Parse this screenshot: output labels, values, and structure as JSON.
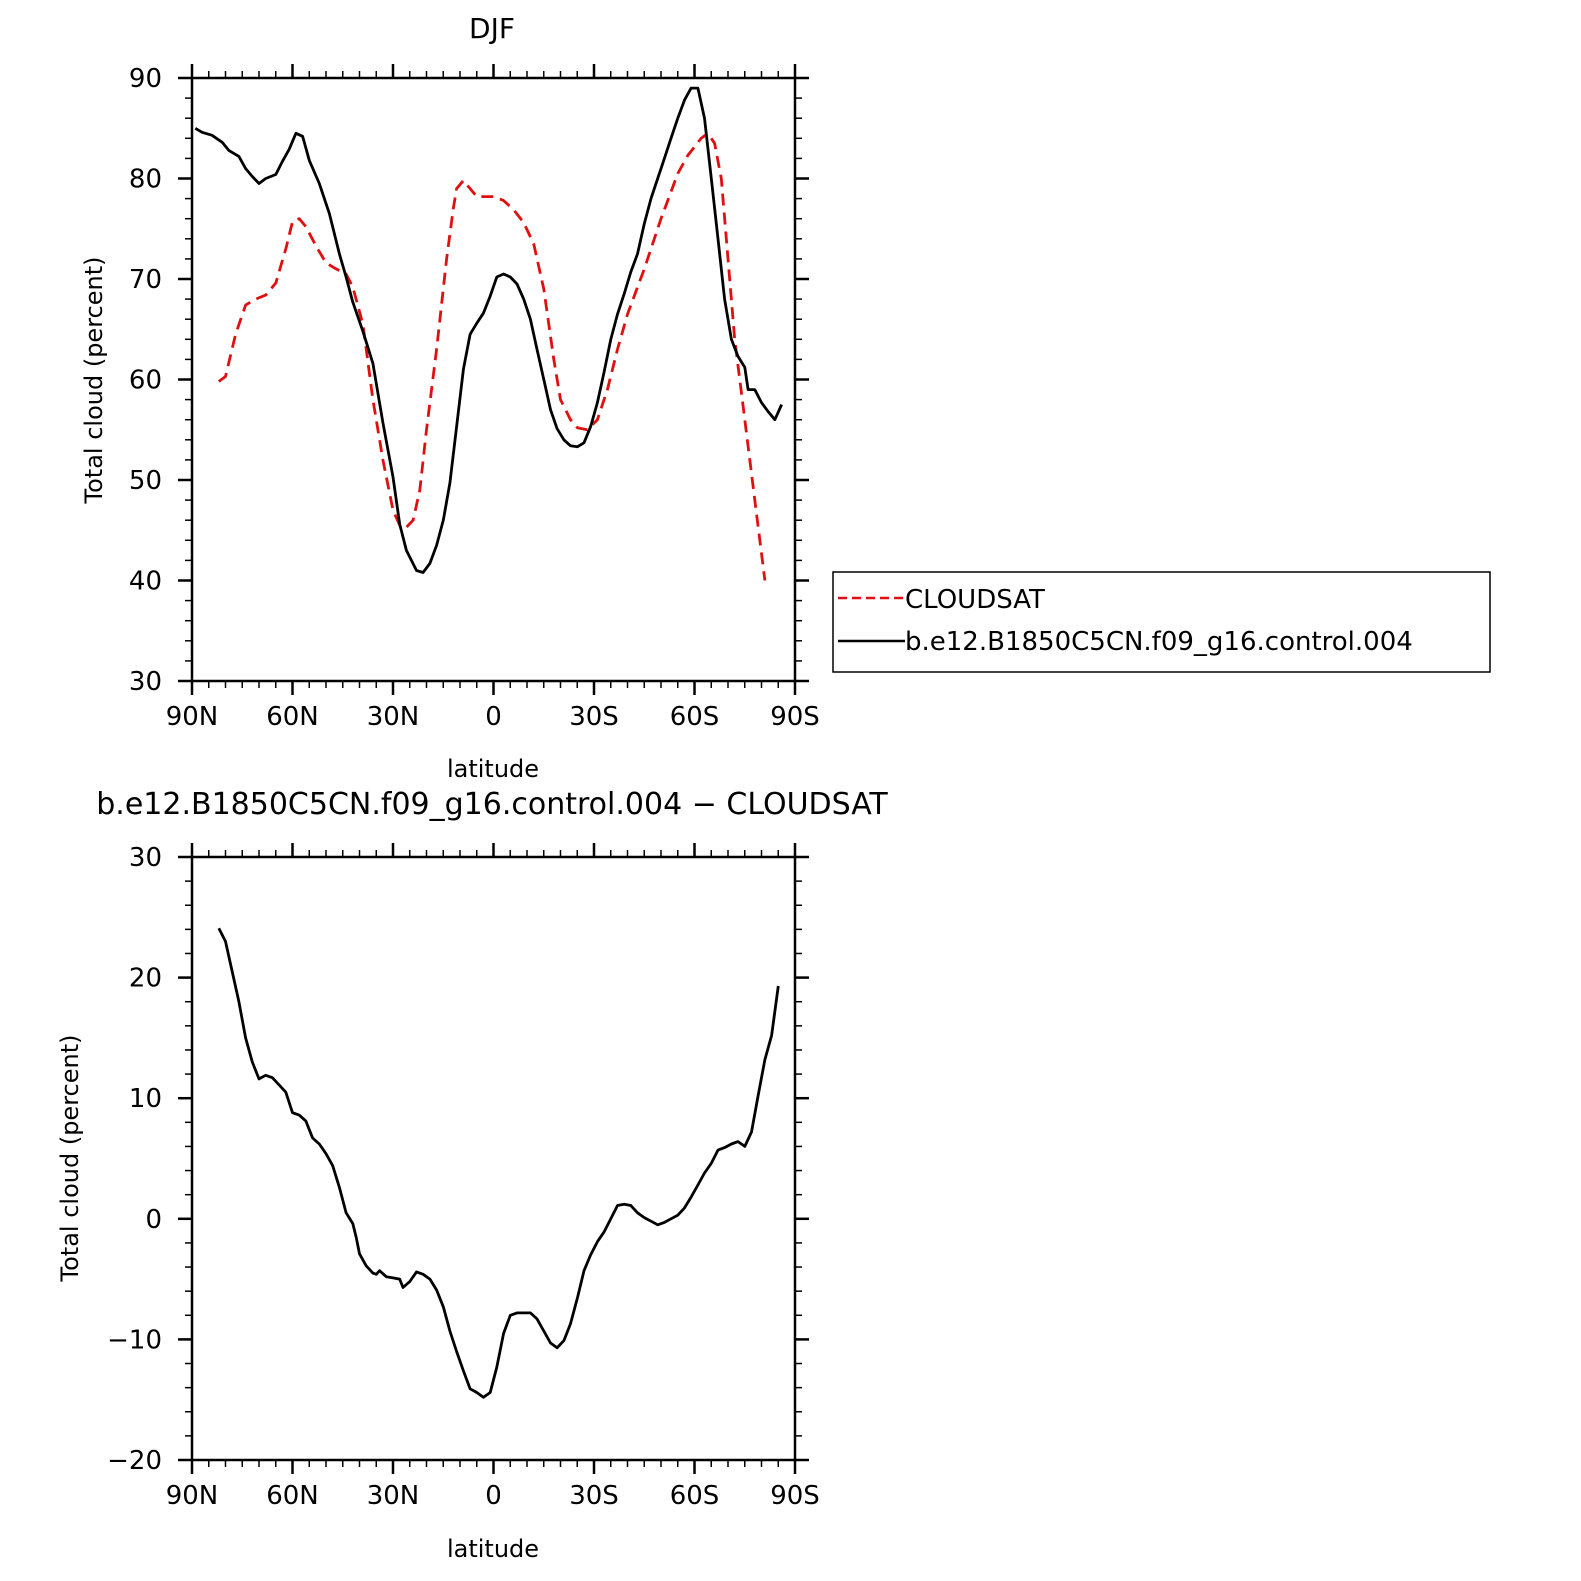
{
  "chart_data": [
    {
      "type": "line",
      "title": "DJF",
      "xlabel": "latitude",
      "ylabel": "Total cloud (percent)",
      "xlim": [
        90,
        -90
      ],
      "ylim": [
        30,
        90
      ],
      "xticks": [
        90,
        60,
        30,
        0,
        -30,
        -60,
        -90
      ],
      "xtick_labels": [
        "90N",
        "60N",
        "30N",
        "0",
        "30S",
        "60S",
        "90S"
      ],
      "yticks": [
        30,
        40,
        50,
        60,
        70,
        80,
        90
      ],
      "ytick_labels": [
        "30",
        "40",
        "50",
        "60",
        "70",
        "80",
        "90"
      ],
      "legend_position": "right",
      "series": [
        {
          "name": "CLOUDSAT",
          "color": "#e01010",
          "dash": true,
          "points": [
            [
              82,
              59.8
            ],
            [
              80,
              60.3
            ],
            [
              77,
              64.5
            ],
            [
              74,
              67.4
            ],
            [
              71,
              68
            ],
            [
              68,
              68.4
            ],
            [
              65,
              69.6
            ],
            [
              62,
              73
            ],
            [
              60,
              75.7
            ],
            [
              58,
              76
            ],
            [
              56,
              75.2
            ],
            [
              53,
              73.3
            ],
            [
              50,
              71.6
            ],
            [
              47,
              71
            ],
            [
              44,
              70.5
            ],
            [
              42,
              69.2
            ],
            [
              39,
              65.5
            ],
            [
              36,
              58
            ],
            [
              33,
              52
            ],
            [
              30,
              47
            ],
            [
              28,
              45.5
            ],
            [
              26,
              45.3
            ],
            [
              24,
              46
            ],
            [
              22,
              49
            ],
            [
              20,
              55
            ],
            [
              17,
              63
            ],
            [
              14,
              72
            ],
            [
              12,
              77
            ],
            [
              11,
              79
            ],
            [
              9,
              79.8
            ],
            [
              7,
              79
            ],
            [
              5,
              78.2
            ],
            [
              3,
              78.2
            ],
            [
              0,
              78.2
            ],
            [
              -3,
              77.8
            ],
            [
              -6,
              76.9
            ],
            [
              -9,
              75.6
            ],
            [
              -12,
              73.5
            ],
            [
              -15,
              69
            ],
            [
              -18,
              62
            ],
            [
              -20,
              58
            ],
            [
              -23,
              56
            ],
            [
              -25,
              55.2
            ],
            [
              -28,
              55
            ],
            [
              -31,
              56
            ],
            [
              -34,
              59
            ],
            [
              -37,
              63
            ],
            [
              -40,
              66.5
            ],
            [
              -45,
              71
            ],
            [
              -50,
              76
            ],
            [
              -55,
              80.5
            ],
            [
              -58,
              82.3
            ],
            [
              -62,
              84
            ],
            [
              -64,
              84.5
            ],
            [
              -66,
              83.5
            ],
            [
              -68,
              80
            ],
            [
              -70,
              72
            ],
            [
              -72,
              64
            ],
            [
              -75,
              56
            ],
            [
              -78,
              48
            ],
            [
              -81,
              40
            ]
          ]
        },
        {
          "name": "b.e12.B1850C5CN.f09_g16.control.004",
          "color": "#000000",
          "dash": false,
          "points": [
            [
              89,
              85
            ],
            [
              87,
              84.6
            ],
            [
              84,
              84.3
            ],
            [
              81,
              83.6
            ],
            [
              79,
              82.8
            ],
            [
              76,
              82.2
            ],
            [
              74,
              81
            ],
            [
              72,
              80.2
            ],
            [
              70,
              79.5
            ],
            [
              68,
              80
            ],
            [
              65,
              80.4
            ],
            [
              63,
              81.7
            ],
            [
              61,
              82.9
            ],
            [
              59,
              84.5
            ],
            [
              57,
              84.2
            ],
            [
              55,
              81.8
            ],
            [
              52,
              79.5
            ],
            [
              49,
              76.5
            ],
            [
              46,
              72.5
            ],
            [
              44,
              70.2
            ],
            [
              42,
              67.7
            ],
            [
              39,
              64.8
            ],
            [
              36,
              61.6
            ],
            [
              33,
              55.7
            ],
            [
              30,
              50.3
            ],
            [
              28,
              45.6
            ],
            [
              26,
              43
            ],
            [
              23,
              41
            ],
            [
              21,
              40.8
            ],
            [
              19,
              41.7
            ],
            [
              17,
              43.5
            ],
            [
              15,
              46
            ],
            [
              13,
              49.7
            ],
            [
              11,
              55.3
            ],
            [
              9,
              61
            ],
            [
              7,
              64.5
            ],
            [
              5,
              65.6
            ],
            [
              3,
              66.6
            ],
            [
              1,
              68.3
            ],
            [
              -1,
              70.2
            ],
            [
              -3,
              70.5
            ],
            [
              -5,
              70.2
            ],
            [
              -7,
              69.5
            ],
            [
              -9,
              68
            ],
            [
              -11,
              66
            ],
            [
              -13,
              63
            ],
            [
              -15,
              60
            ],
            [
              -17,
              57
            ],
            [
              -19,
              55.1
            ],
            [
              -21,
              54
            ],
            [
              -23,
              53.4
            ],
            [
              -25,
              53.3
            ],
            [
              -27,
              53.7
            ],
            [
              -29,
              55.3
            ],
            [
              -31,
              57.7
            ],
            [
              -33,
              60.7
            ],
            [
              -35,
              64
            ],
            [
              -37,
              66.5
            ],
            [
              -39,
              68.5
            ],
            [
              -41,
              70.7
            ],
            [
              -43,
              72.5
            ],
            [
              -45,
              75.5
            ],
            [
              -47,
              78
            ],
            [
              -49,
              80
            ],
            [
              -51,
              82
            ],
            [
              -53,
              84
            ],
            [
              -55,
              86
            ],
            [
              -57,
              87.8
            ],
            [
              -59,
              89
            ],
            [
              -61,
              89
            ],
            [
              -63,
              86
            ],
            [
              -65,
              80
            ],
            [
              -67,
              74
            ],
            [
              -69,
              68
            ],
            [
              -71,
              64
            ],
            [
              -73,
              62.3
            ],
            [
              -75,
              61.2
            ],
            [
              -76,
              59
            ],
            [
              -78,
              59
            ],
            [
              -80,
              57.7
            ],
            [
              -82,
              56.8
            ],
            [
              -84,
              56
            ],
            [
              -86,
              57.5
            ]
          ]
        }
      ]
    },
    {
      "type": "line",
      "title": "b.e12.B1850C5CN.f09_g16.control.004 − CLOUDSAT",
      "xlabel": "latitude",
      "ylabel": "Total cloud (percent)",
      "xlim": [
        90,
        -90
      ],
      "ylim": [
        -20,
        30
      ],
      "xticks": [
        90,
        60,
        30,
        0,
        -30,
        -60,
        -90
      ],
      "xtick_labels": [
        "90N",
        "60N",
        "30N",
        "0",
        "30S",
        "60S",
        "90S"
      ],
      "yticks": [
        -20,
        -10,
        0,
        10,
        20,
        30
      ],
      "ytick_labels": [
        "−20",
        "−10",
        "0",
        "10",
        "20",
        "30"
      ],
      "series": [
        {
          "color": "#000000",
          "dash": false,
          "points": [
            [
              82,
              24.1
            ],
            [
              80,
              23
            ],
            [
              78,
              20.5
            ],
            [
              76,
              18
            ],
            [
              74,
              15
            ],
            [
              72,
              13
            ],
            [
              70,
              11.6
            ],
            [
              68,
              11.9
            ],
            [
              66,
              11.7
            ],
            [
              64,
              11.1
            ],
            [
              62,
              10.5
            ],
            [
              60,
              8.8
            ],
            [
              58,
              8.6
            ],
            [
              56,
              8.1
            ],
            [
              54,
              6.7
            ],
            [
              52,
              6.2
            ],
            [
              50,
              5.4
            ],
            [
              48,
              4.4
            ],
            [
              46,
              2.6
            ],
            [
              44,
              0.5
            ],
            [
              42,
              -0.4
            ],
            [
              41,
              -1.5
            ],
            [
              40,
              -2.9
            ],
            [
              38,
              -3.9
            ],
            [
              36,
              -4.5
            ],
            [
              35,
              -4.6
            ],
            [
              34,
              -4.3
            ],
            [
              32,
              -4.8
            ],
            [
              30,
              -4.9
            ],
            [
              28,
              -5
            ],
            [
              27,
              -5.7
            ],
            [
              25,
              -5.2
            ],
            [
              23,
              -4.4
            ],
            [
              21,
              -4.6
            ],
            [
              19,
              -5
            ],
            [
              17,
              -5.9
            ],
            [
              15,
              -7.3
            ],
            [
              13,
              -9.3
            ],
            [
              11,
              -11
            ],
            [
              9,
              -12.6
            ],
            [
              7,
              -14.1
            ],
            [
              5,
              -14.4
            ],
            [
              3,
              -14.8
            ],
            [
              1,
              -14.4
            ],
            [
              -1,
              -12.3
            ],
            [
              -3,
              -9.5
            ],
            [
              -5,
              -8
            ],
            [
              -7,
              -7.8
            ],
            [
              -9,
              -7.8
            ],
            [
              -11,
              -7.8
            ],
            [
              -13,
              -8.3
            ],
            [
              -15,
              -9.3
            ],
            [
              -17,
              -10.3
            ],
            [
              -19,
              -10.7
            ],
            [
              -21,
              -10.1
            ],
            [
              -23,
              -8.7
            ],
            [
              -25,
              -6.6
            ],
            [
              -27,
              -4.3
            ],
            [
              -29,
              -3
            ],
            [
              -31,
              -1.9
            ],
            [
              -33,
              -1.1
            ],
            [
              -35,
              0
            ],
            [
              -37,
              1.1
            ],
            [
              -39,
              1.2
            ],
            [
              -41,
              1.1
            ],
            [
              -43,
              0.5
            ],
            [
              -45,
              0.1
            ],
            [
              -47,
              -0.2
            ],
            [
              -49,
              -0.5
            ],
            [
              -51,
              -0.3
            ],
            [
              -53,
              0
            ],
            [
              -55,
              0.3
            ],
            [
              -57,
              0.9
            ],
            [
              -59,
              1.8
            ],
            [
              -61,
              2.8
            ],
            [
              -63,
              3.8
            ],
            [
              -65,
              4.6
            ],
            [
              -67,
              5.7
            ],
            [
              -69,
              5.9
            ],
            [
              -71,
              6.2
            ],
            [
              -73,
              6.4
            ],
            [
              -75,
              6
            ],
            [
              -77,
              7.2
            ],
            [
              -79,
              10.2
            ],
            [
              -81,
              13.2
            ],
            [
              -83,
              15.2
            ],
            [
              -85,
              19.3
            ]
          ]
        }
      ]
    }
  ]
}
